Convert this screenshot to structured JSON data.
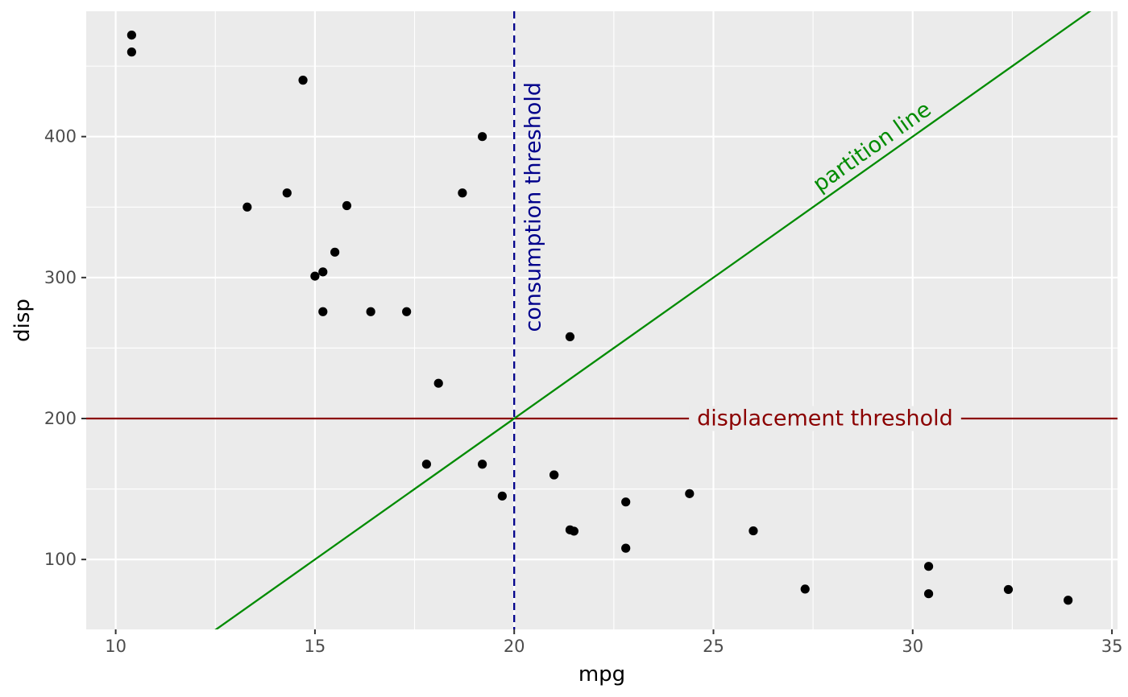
{
  "chart_data": {
    "type": "scatter",
    "xlabel": "mpg",
    "ylabel": "disp",
    "xlim": [
      9.26,
      35.14
    ],
    "ylim": [
      50.4,
      488.9
    ],
    "x_ticks": [
      10,
      15,
      20,
      25,
      30,
      35
    ],
    "y_ticks": [
      100,
      200,
      300,
      400
    ],
    "x_tick_labels": [
      "10",
      "15",
      "20",
      "25",
      "30",
      "35"
    ],
    "y_tick_labels": [
      "100",
      "200",
      "300",
      "400"
    ],
    "grid": true,
    "colors": {
      "panel_background": "#EBEBEB",
      "grid": "#FFFFFF",
      "points": "#000000",
      "displacement_threshold": "#8B0000",
      "consumption_threshold": "#00008B",
      "partition_line": "#008B00"
    },
    "points": [
      {
        "x": 21.0,
        "y": 160.0
      },
      {
        "x": 21.0,
        "y": 160.0
      },
      {
        "x": 22.8,
        "y": 108.0
      },
      {
        "x": 21.4,
        "y": 258.0
      },
      {
        "x": 18.7,
        "y": 360.0
      },
      {
        "x": 18.1,
        "y": 225.0
      },
      {
        "x": 14.3,
        "y": 360.0
      },
      {
        "x": 24.4,
        "y": 146.7
      },
      {
        "x": 22.8,
        "y": 140.8
      },
      {
        "x": 19.2,
        "y": 167.6
      },
      {
        "x": 17.8,
        "y": 167.6
      },
      {
        "x": 16.4,
        "y": 275.8
      },
      {
        "x": 17.3,
        "y": 275.8
      },
      {
        "x": 15.2,
        "y": 275.8
      },
      {
        "x": 10.4,
        "y": 472.0
      },
      {
        "x": 10.4,
        "y": 460.0
      },
      {
        "x": 14.7,
        "y": 440.0
      },
      {
        "x": 32.4,
        "y": 78.7
      },
      {
        "x": 30.4,
        "y": 75.7
      },
      {
        "x": 33.9,
        "y": 71.1
      },
      {
        "x": 21.5,
        "y": 120.1
      },
      {
        "x": 15.5,
        "y": 318.0
      },
      {
        "x": 15.2,
        "y": 304.0
      },
      {
        "x": 13.3,
        "y": 350.0
      },
      {
        "x": 19.2,
        "y": 400.0
      },
      {
        "x": 27.3,
        "y": 79.0
      },
      {
        "x": 26.0,
        "y": 120.3
      },
      {
        "x": 30.4,
        "y": 95.1
      },
      {
        "x": 15.8,
        "y": 351.0
      },
      {
        "x": 19.7,
        "y": 145.0
      },
      {
        "x": 15.0,
        "y": 301.0
      },
      {
        "x": 21.4,
        "y": 121.0
      }
    ],
    "reference_lines": {
      "displacement_threshold": {
        "y": 200,
        "label": "displacement threshold",
        "label_x": 27.8
      },
      "consumption_threshold": {
        "x": 20,
        "label": "consumption threshold",
        "label_y": 350
      },
      "partition_line": {
        "intercept": -200,
        "slope": 20,
        "label": "partition line",
        "label_x": 29.2
      }
    }
  }
}
